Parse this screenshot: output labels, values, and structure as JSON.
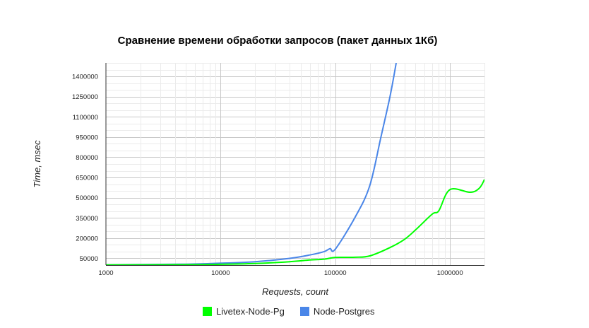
{
  "chart_data": {
    "type": "line",
    "title": "Сравнение времени обработки запросов (пакет данных 1Кб)",
    "xlabel": "Requests, count",
    "ylabel": "Time, msec",
    "x_scale": "log",
    "xlim": [
      1000,
      2000000
    ],
    "ylim": [
      0,
      1500000
    ],
    "x_ticks": [
      "1000",
      "10000",
      "100000",
      "1000000"
    ],
    "y_ticks": [
      "50000",
      "200000",
      "350000",
      "500000",
      "650000",
      "800000",
      "950000",
      "1100000",
      "1250000",
      "1400000"
    ],
    "grid": true,
    "legend_position": "bottom",
    "series": [
      {
        "name": "Livetex-Node-Pg",
        "color": "#00ff00",
        "x": [
          1000,
          5000,
          10000,
          20000,
          40000,
          60000,
          80000,
          100000,
          150000,
          200000,
          300000,
          400000,
          500000,
          700000,
          800000,
          1000000,
          1500000,
          1800000,
          2000000
        ],
        "y": [
          1000,
          3000,
          6000,
          12000,
          25000,
          38000,
          44000,
          57000,
          58000,
          68000,
          130000,
          190000,
          260000,
          378000,
          404000,
          560000,
          540000,
          570000,
          635000
        ]
      },
      {
        "name": "Node-Postgres",
        "color": "#4a86e8",
        "x": [
          1000,
          5000,
          10000,
          20000,
          40000,
          60000,
          80000,
          90000,
          100000,
          150000,
          200000,
          250000,
          300000,
          340000
        ],
        "y": [
          2000,
          7000,
          14000,
          25000,
          50000,
          75000,
          100000,
          122000,
          118000,
          360000,
          590000,
          950000,
          1250000,
          1500000
        ]
      }
    ]
  },
  "legend": {
    "items": [
      {
        "label": "Livetex-Node-Pg",
        "color": "#00ff00"
      },
      {
        "label": "Node-Postgres",
        "color": "#4a86e8"
      }
    ]
  }
}
